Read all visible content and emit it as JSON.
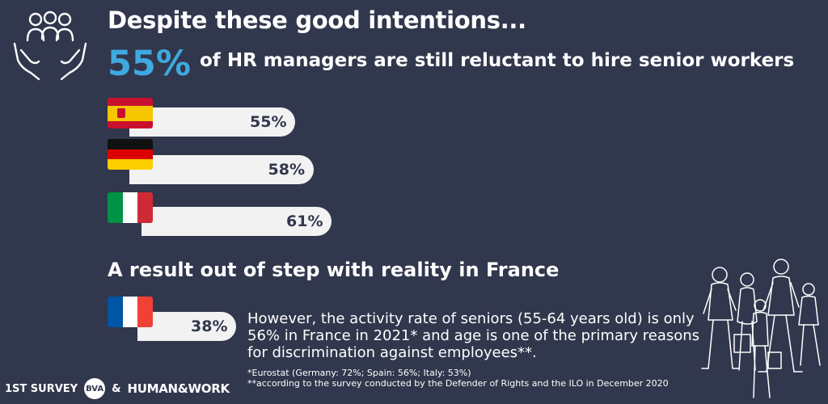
{
  "header": {
    "title": "Despite these good intentions...",
    "headline_value": "55%",
    "headline_text": "of HR managers are still reluctant to hire senior workers"
  },
  "chart_data": {
    "type": "bar",
    "orientation": "horizontal",
    "categories": [
      "Spain",
      "Germany",
      "Italy"
    ],
    "values": [
      55,
      58,
      61
    ],
    "labels": [
      "55%",
      "58%",
      "61%"
    ]
  },
  "france_section": {
    "title": "A result out of step with reality in France",
    "value": 38,
    "label": "38%",
    "note": "However, the activity rate of seniors (55-64 years old) is only 56% in France in 2021* and age is one of the primary reasons for discrimination against employees**.",
    "footnote_1": "*Eurostat (Germany: 72%; Spain: 56%; Italy: 53%)",
    "footnote_2": "**according to the survey conducted by the Defender of Rights and the ILO in December 2020"
  },
  "footer": {
    "survey_label": "1ST SURVEY",
    "bva_logo": "BVA",
    "ampersand": "&",
    "partner_logo": "HUMAN&WORK"
  },
  "colors": {
    "background": "#31374d",
    "accent": "#3fa9e0",
    "bar": "#f2f2f2"
  },
  "icons": [
    "people-hands-icon",
    "walking-people-illustration",
    "spain-flag-icon",
    "germany-flag-icon",
    "italy-flag-icon",
    "france-flag-icon"
  ]
}
